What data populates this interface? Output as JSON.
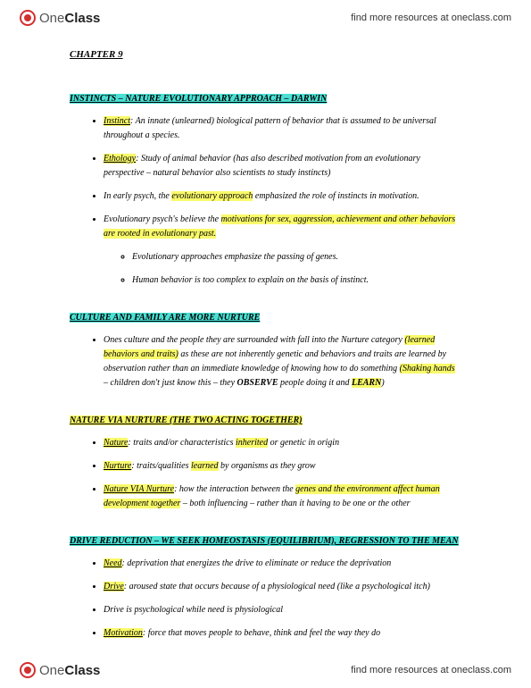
{
  "brand": {
    "part1": "One",
    "part2": "Class"
  },
  "resource_link": "find more resources at oneclass.com",
  "chapter": "CHAPTER 9",
  "sections": [
    {
      "title": "INSTINCTS – NATURE EVOLUTIONARY APPROACH – DARWIN",
      "hl": "cyan",
      "bullets": [
        {
          "lvl": 1,
          "runs": [
            {
              "t": "Instinct",
              "hl": "y",
              "u": true
            },
            {
              "t": ": An innate (unlearned) biological pattern of behavior that is assumed to be universal throughout a species."
            }
          ]
        },
        {
          "lvl": 1,
          "runs": [
            {
              "t": "Ethology",
              "hl": "y",
              "u": true
            },
            {
              "t": ": Study of animal behavior (has also described motivation from an evolutionary perspective – natural behavior also scientists to study instincts)"
            }
          ]
        },
        {
          "lvl": 1,
          "runs": [
            {
              "t": "In early psych, the "
            },
            {
              "t": "evolutionary approach",
              "hl": "y"
            },
            {
              "t": " emphasized the role of instincts in motivation."
            }
          ]
        },
        {
          "lvl": 1,
          "runs": [
            {
              "t": "Evolutionary psych's believe the "
            },
            {
              "t": "motivations for sex, aggression, achievement and other behaviors are rooted in evolutionary past.",
              "hl": "y"
            }
          ]
        },
        {
          "lvl": 2,
          "runs": [
            {
              "t": "Evolutionary approaches emphasize the passing of genes."
            }
          ]
        },
        {
          "lvl": 2,
          "runs": [
            {
              "t": "Human behavior is too complex to explain on the basis of instinct."
            }
          ]
        }
      ]
    },
    {
      "title": "CULTURE AND FAMILY ARE MORE NURTURE",
      "hl": "cyan",
      "bullets": [
        {
          "lvl": 1,
          "runs": [
            {
              "t": "Ones culture and the people they are surrounded with fall into the Nurture category "
            },
            {
              "t": "(learned behaviors and traits)",
              "hl": "y"
            },
            {
              "t": " as these are not inherently genetic and behaviors and traits are learned by observation rather than an immediate knowledge of knowing how to do something "
            },
            {
              "t": "(Shaking hands",
              "hl": "y"
            },
            {
              "t": " – children don't just know this – they "
            },
            {
              "t": "OBSERVE",
              "b": true
            },
            {
              "t": " people doing it and "
            },
            {
              "t": "LEARN",
              "hl": "y",
              "b": true
            },
            {
              "t": ")"
            }
          ]
        }
      ]
    },
    {
      "title": "NATURE VIA NURTURE (THE TWO ACTING TOGETHER)",
      "hl": "yellow",
      "bullets": [
        {
          "lvl": 1,
          "runs": [
            {
              "t": "Nature",
              "hl": "y",
              "u": true
            },
            {
              "t": ": traits and/or characteristics "
            },
            {
              "t": "inherited",
              "hl": "y"
            },
            {
              "t": " or genetic in origin"
            }
          ]
        },
        {
          "lvl": 1,
          "runs": [
            {
              "t": "Nurture",
              "hl": "y",
              "u": true
            },
            {
              "t": ": traits/qualities "
            },
            {
              "t": "learned",
              "hl": "y"
            },
            {
              "t": " by organisms as they grow"
            }
          ]
        },
        {
          "lvl": 1,
          "runs": [
            {
              "t": "Nature VIA Nurture",
              "hl": "y",
              "u": true
            },
            {
              "t": ": how the interaction between the "
            },
            {
              "t": "genes and the environment affect human development together",
              "hl": "y"
            },
            {
              "t": " – both influencing – rather than it having to be one or the other"
            }
          ]
        }
      ]
    },
    {
      "title": "DRIVE REDUCTION – WE SEEK HOMEOSTASIS (EQUILIBRIUM), REGRESSION TO THE MEAN",
      "hl": "cyan",
      "bullets": [
        {
          "lvl": 1,
          "runs": [
            {
              "t": "Need",
              "hl": "y",
              "u": true
            },
            {
              "t": ": deprivation that energizes the drive to eliminate or reduce the deprivation"
            }
          ]
        },
        {
          "lvl": 1,
          "runs": [
            {
              "t": "Drive",
              "hl": "y",
              "u": true
            },
            {
              "t": ": aroused state that occurs because of a physiological need (like a psychological itch)"
            }
          ]
        },
        {
          "lvl": 1,
          "runs": [
            {
              "t": "Drive is psychological while need is physiological"
            }
          ]
        },
        {
          "lvl": 1,
          "runs": [
            {
              "t": "Motivation",
              "hl": "y",
              "u": true
            },
            {
              "t": ": force that moves people to behave, think and feel the way they do"
            }
          ]
        }
      ]
    }
  ]
}
